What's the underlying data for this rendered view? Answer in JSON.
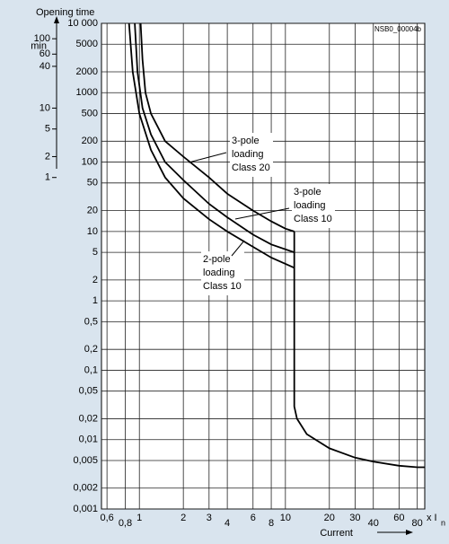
{
  "chart_data": {
    "type": "line",
    "title": "Opening time",
    "code": "NSB0_00004b",
    "x_label": "Current",
    "x_unit": "x I",
    "x_unit_sub": "n",
    "log_x": true,
    "log_y": true,
    "grid": true,
    "xlim": [
      0.55,
      90
    ],
    "xticks": [
      {
        "value": 0.6,
        "label": "0,6"
      },
      {
        "value": 0.8,
        "label": "0,8"
      },
      1,
      2,
      3,
      4,
      6,
      8,
      10,
      20,
      30,
      40,
      60,
      80
    ],
    "ylim": [
      0.001,
      10000
    ],
    "yticks": [
      {
        "value": 10000,
        "label": "10 000"
      },
      5000,
      2000,
      1000,
      500,
      200,
      100,
      50,
      20,
      10,
      5,
      2,
      1,
      {
        "value": 0.5,
        "label": "0,5"
      },
      {
        "value": 0.2,
        "label": "0,2"
      },
      {
        "value": 0.1,
        "label": "0,1"
      },
      {
        "value": 0.05,
        "label": "0,05"
      },
      {
        "value": 0.02,
        "label": "0,02"
      },
      {
        "value": 0.01,
        "label": "0,01"
      },
      {
        "value": 0.005,
        "label": "0,005"
      },
      {
        "value": 0.002,
        "label": "0,002"
      },
      {
        "value": 0.001,
        "label": "0,001"
      }
    ],
    "y2_unit": "min",
    "y2lim": [
      1.66667e-05,
      166.667
    ],
    "y2ticks": [
      100,
      60,
      40,
      10,
      5,
      2,
      1
    ],
    "series": [
      {
        "color": "#000000",
        "x": [
          1.02,
          1.05,
          1.1,
          1.2,
          1.5,
          2,
          3,
          4,
          6,
          8,
          10,
          11.5
        ],
        "values": [
          10000,
          3000,
          1000,
          500,
          200,
          120,
          60,
          35,
          20,
          14,
          11,
          10
        ]
      },
      {
        "color": "#000000",
        "x": [
          0.93,
          0.97,
          1.05,
          1.2,
          1.5,
          2,
          3,
          4,
          6,
          8,
          11.5
        ],
        "values": [
          10000,
          2000,
          600,
          250,
          100,
          55,
          25,
          16,
          9,
          6.5,
          5
        ]
      },
      {
        "color": "#000000",
        "x": [
          0.85,
          0.9,
          1,
          1.2,
          1.5,
          2,
          3,
          4,
          6,
          8,
          11.5
        ],
        "values": [
          10000,
          2000,
          500,
          150,
          60,
          30,
          15,
          10,
          6,
          4.2,
          3
        ]
      },
      {
        "color": "#000000",
        "x": [
          11.5,
          11.5,
          12,
          14,
          20,
          30,
          40,
          60,
          80,
          90
        ],
        "values": [
          10,
          0.03,
          0.02,
          0.012,
          0.0075,
          0.0055,
          0.0048,
          0.0042,
          0.004,
          0.004
        ]
      }
    ],
    "annotations": [
      {
        "lines": [
          "3-pole",
          "loading",
          "Class 20"
        ]
      },
      {
        "lines": [
          "3-pole",
          "loading",
          "Class 10"
        ]
      },
      {
        "lines": [
          "2-pole",
          "loading",
          "Class 10"
        ]
      }
    ]
  }
}
